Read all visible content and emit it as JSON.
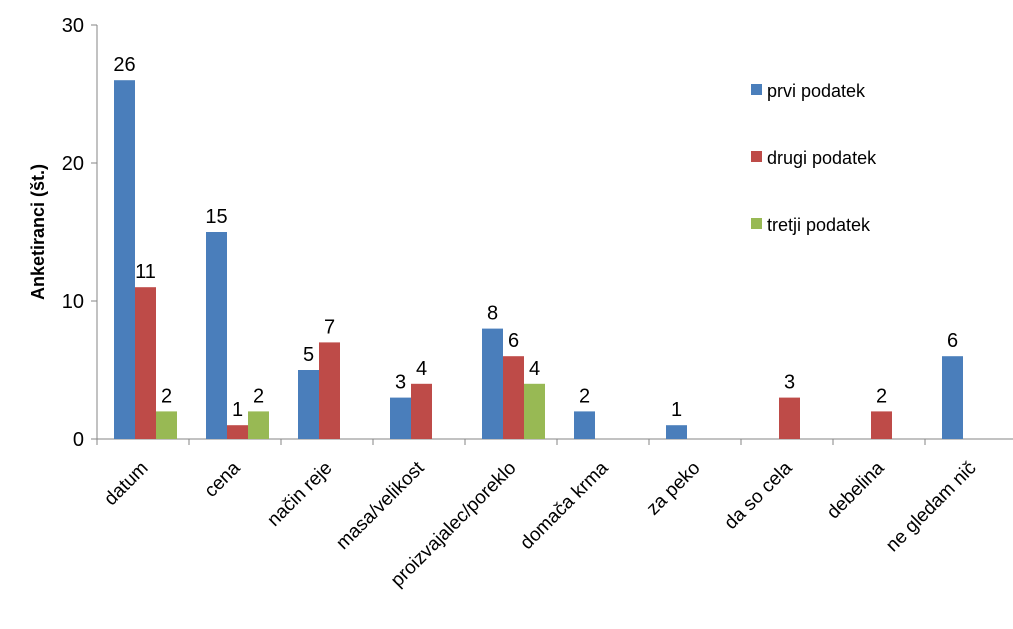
{
  "chart_data": {
    "type": "bar",
    "title": "",
    "xlabel": "",
    "ylabel": "Anketiranci (št.)",
    "ylim": [
      0,
      30
    ],
    "yticks": [
      0,
      10,
      20,
      30
    ],
    "grid": false,
    "legend_position": "top-right",
    "categories": [
      "datum",
      "cena",
      "način reje",
      "masa/velikost",
      "proizvajalec/poreklo",
      "domača krma",
      "za peko",
      "da so cela",
      "debelina",
      "ne gledam nič"
    ],
    "series": [
      {
        "name": "prvi podatek",
        "color": "#4a7ebb",
        "values": [
          26,
          15,
          5,
          3,
          8,
          2,
          1,
          null,
          null,
          6
        ]
      },
      {
        "name": "drugi podatek",
        "color": "#be4b48",
        "values": [
          11,
          1,
          7,
          4,
          6,
          null,
          null,
          3,
          2,
          null
        ]
      },
      {
        "name": "tretji podatek",
        "color": "#98b954",
        "values": [
          2,
          2,
          null,
          null,
          4,
          null,
          null,
          null,
          null,
          null
        ]
      }
    ]
  }
}
